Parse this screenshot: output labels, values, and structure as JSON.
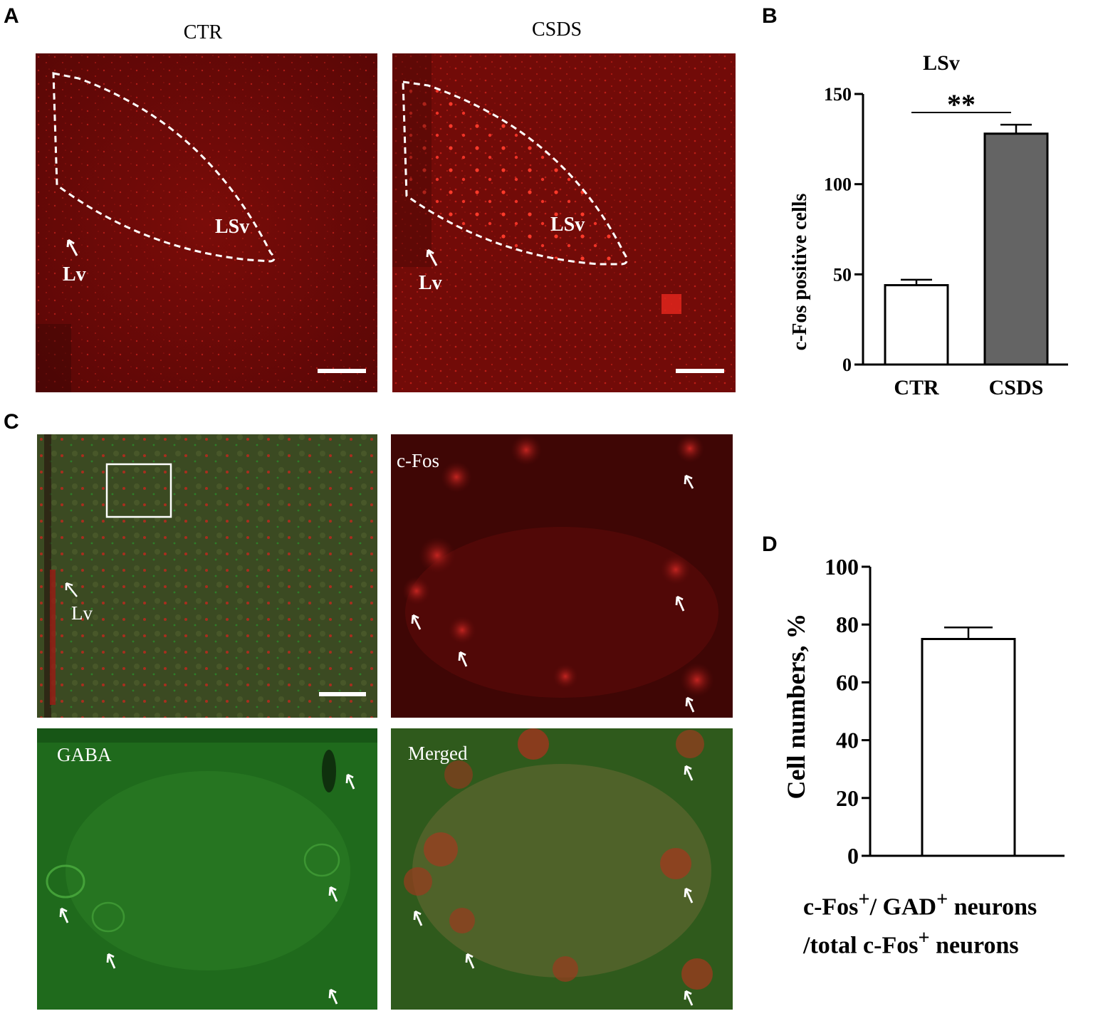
{
  "panels": {
    "A": {
      "letter": "A",
      "left_title": "CTR",
      "right_title": "CSDS",
      "region_label": "LSv",
      "ventricle_label": "Lv"
    },
    "B": {
      "letter": "B"
    },
    "C": {
      "letter": "C",
      "ventricle_label": "Lv",
      "cfos_label": "c-Fos",
      "gaba_label": "GABA",
      "merged_label": "Merged"
    },
    "D": {
      "letter": "D",
      "caption_line1_a": "c-Fos",
      "caption_line1_sup1": "+",
      "caption_line1_b": "/ GAD",
      "caption_line1_sup2": "+",
      "caption_line1_c": " neurons",
      "caption_line2_a": "/total c-Fos",
      "caption_line2_sup": "+",
      "caption_line2_b": " neurons"
    }
  },
  "colors": {
    "ctr_bar": "#ffffff",
    "csds_bar": "#646464",
    "red_tissue": "#8a0d0a",
    "green_tissue": "#1f6a1c"
  },
  "chart_data": [
    {
      "type": "bar",
      "title": "LSv",
      "categories": [
        "CTR",
        "CSDS"
      ],
      "values": [
        44,
        128
      ],
      "errors": [
        3,
        5
      ],
      "ylabel": "c-Fos positive cells",
      "xlabel": "",
      "ylim": [
        0,
        150
      ],
      "yticks": [
        0,
        50,
        100,
        150
      ],
      "significance": "**",
      "grid": false
    },
    {
      "type": "bar",
      "title": "",
      "categories": [
        ""
      ],
      "values": [
        75
      ],
      "errors": [
        4
      ],
      "ylabel": "Cell numbers, %",
      "xlabel": "",
      "ylim": [
        0,
        100
      ],
      "yticks": [
        0,
        20,
        40,
        60,
        80,
        100
      ],
      "grid": false
    }
  ]
}
